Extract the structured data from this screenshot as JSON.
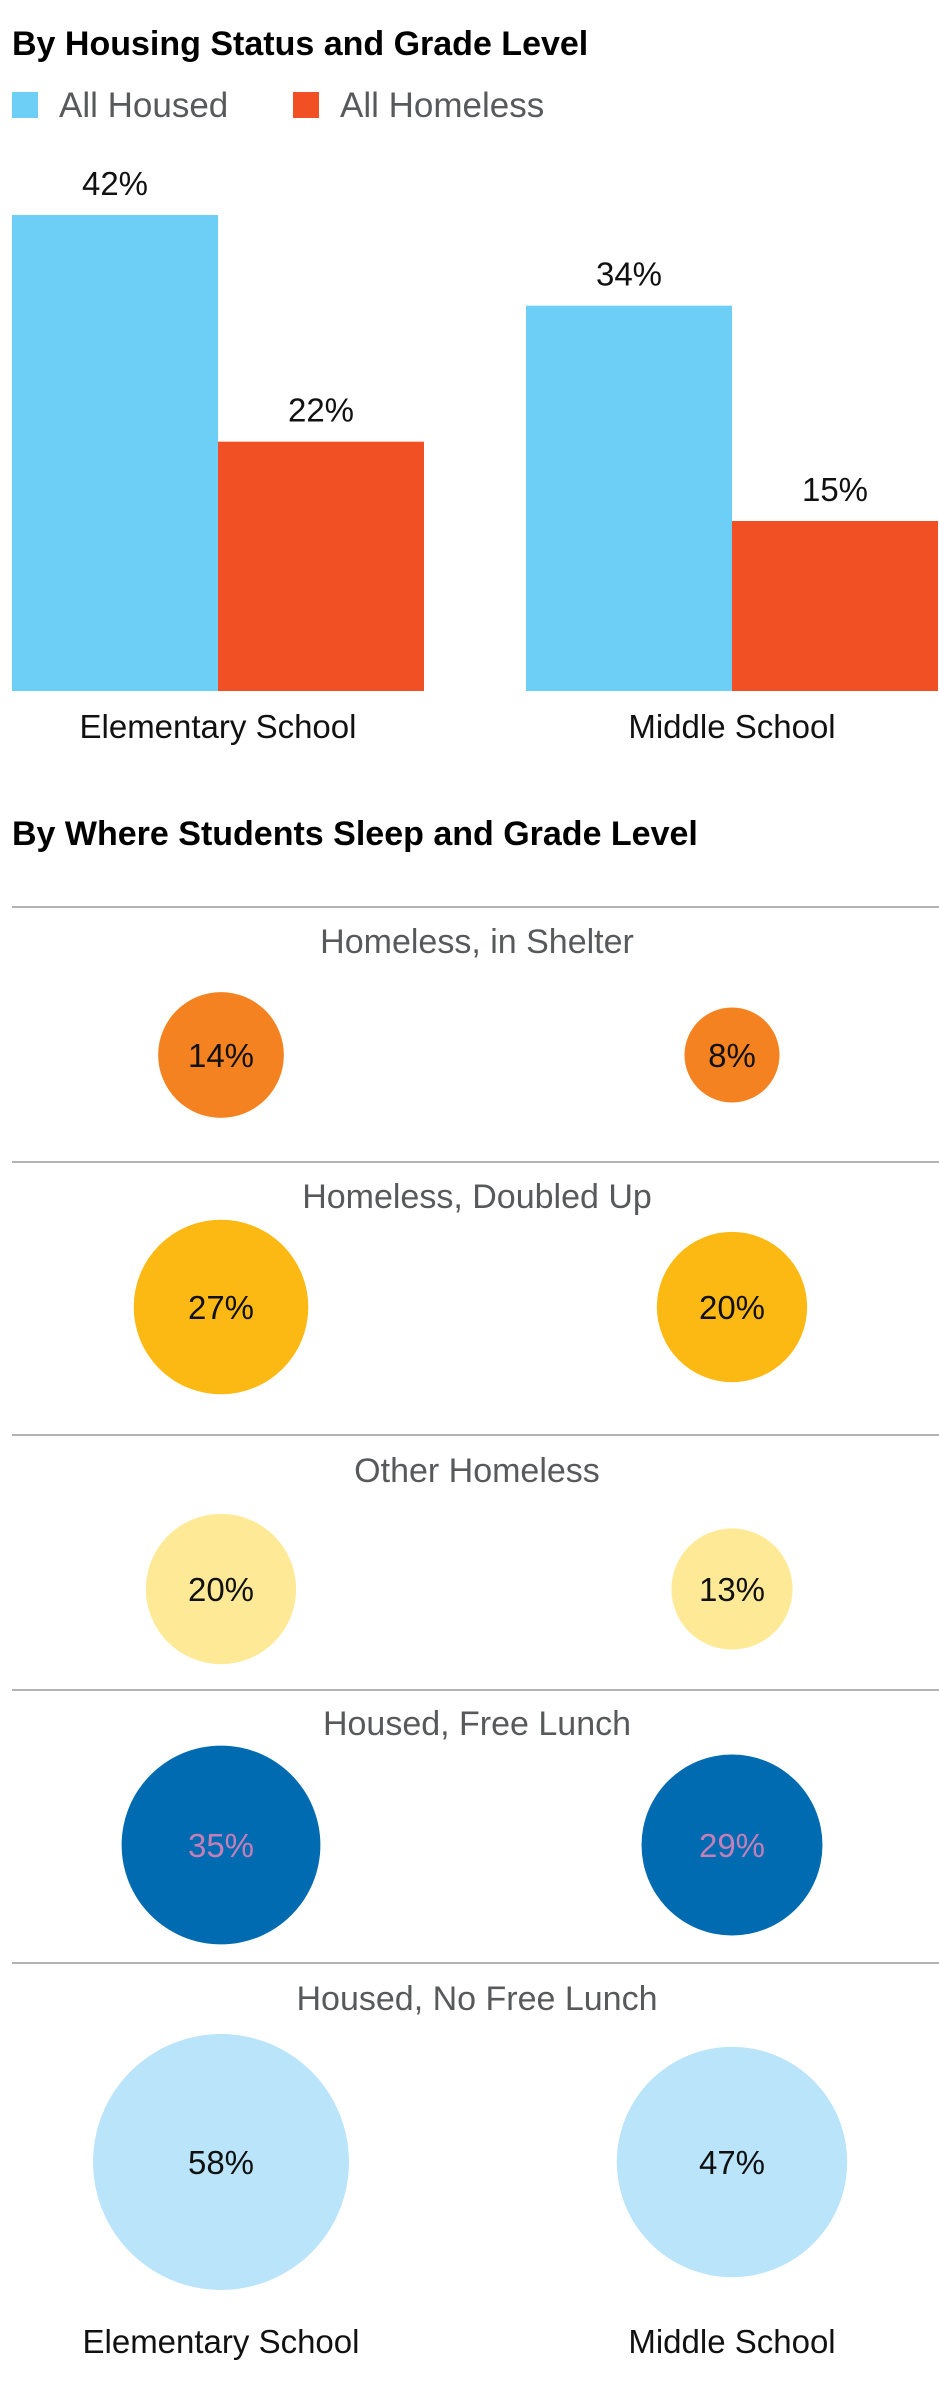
{
  "chart_data": [
    {
      "type": "bar",
      "title": "By Housing Status and Grade Level",
      "categories": [
        "Elementary School",
        "Middle School"
      ],
      "series": [
        {
          "name": "All Housed",
          "values": [
            42,
            34
          ],
          "labels": [
            "42%",
            "34%"
          ],
          "color": "#6dcff6"
        },
        {
          "name": "All Homeless",
          "values": [
            22,
            15
          ],
          "labels": [
            "22%",
            "15%"
          ],
          "color": "#f15025"
        }
      ],
      "legend": "top-left",
      "grid": false,
      "ylim": [
        0,
        42
      ]
    },
    {
      "type": "bubble",
      "title": "By Where Students Sleep and Grade Level",
      "categories": [
        "Elementary School",
        "Middle School"
      ],
      "rows": [
        {
          "name": "Homeless, in Shelter",
          "values": [
            14,
            8
          ],
          "labels": [
            "14%",
            "8%"
          ],
          "color": "#f58220",
          "text_color": "#111111"
        },
        {
          "name": "Homeless, Doubled Up",
          "values": [
            27,
            20
          ],
          "labels": [
            "27%",
            "20%"
          ],
          "color": "#fdb913",
          "text_color": "#111111"
        },
        {
          "name": "Other Homeless",
          "values": [
            20,
            13
          ],
          "labels": [
            "20%",
            "13%"
          ],
          "color": "#feea96",
          "text_color": "#111111"
        },
        {
          "name": "Housed, Free Lunch",
          "values": [
            35,
            29
          ],
          "labels": [
            "35%",
            "29%"
          ],
          "color": "#006bb0",
          "text_color": "#c57fb8"
        },
        {
          "name": "Housed, No Free Lunch",
          "values": [
            58,
            47
          ],
          "labels": [
            "58%",
            "47%"
          ],
          "color": "#b9e4f9",
          "text_color": "#111111"
        }
      ]
    }
  ]
}
